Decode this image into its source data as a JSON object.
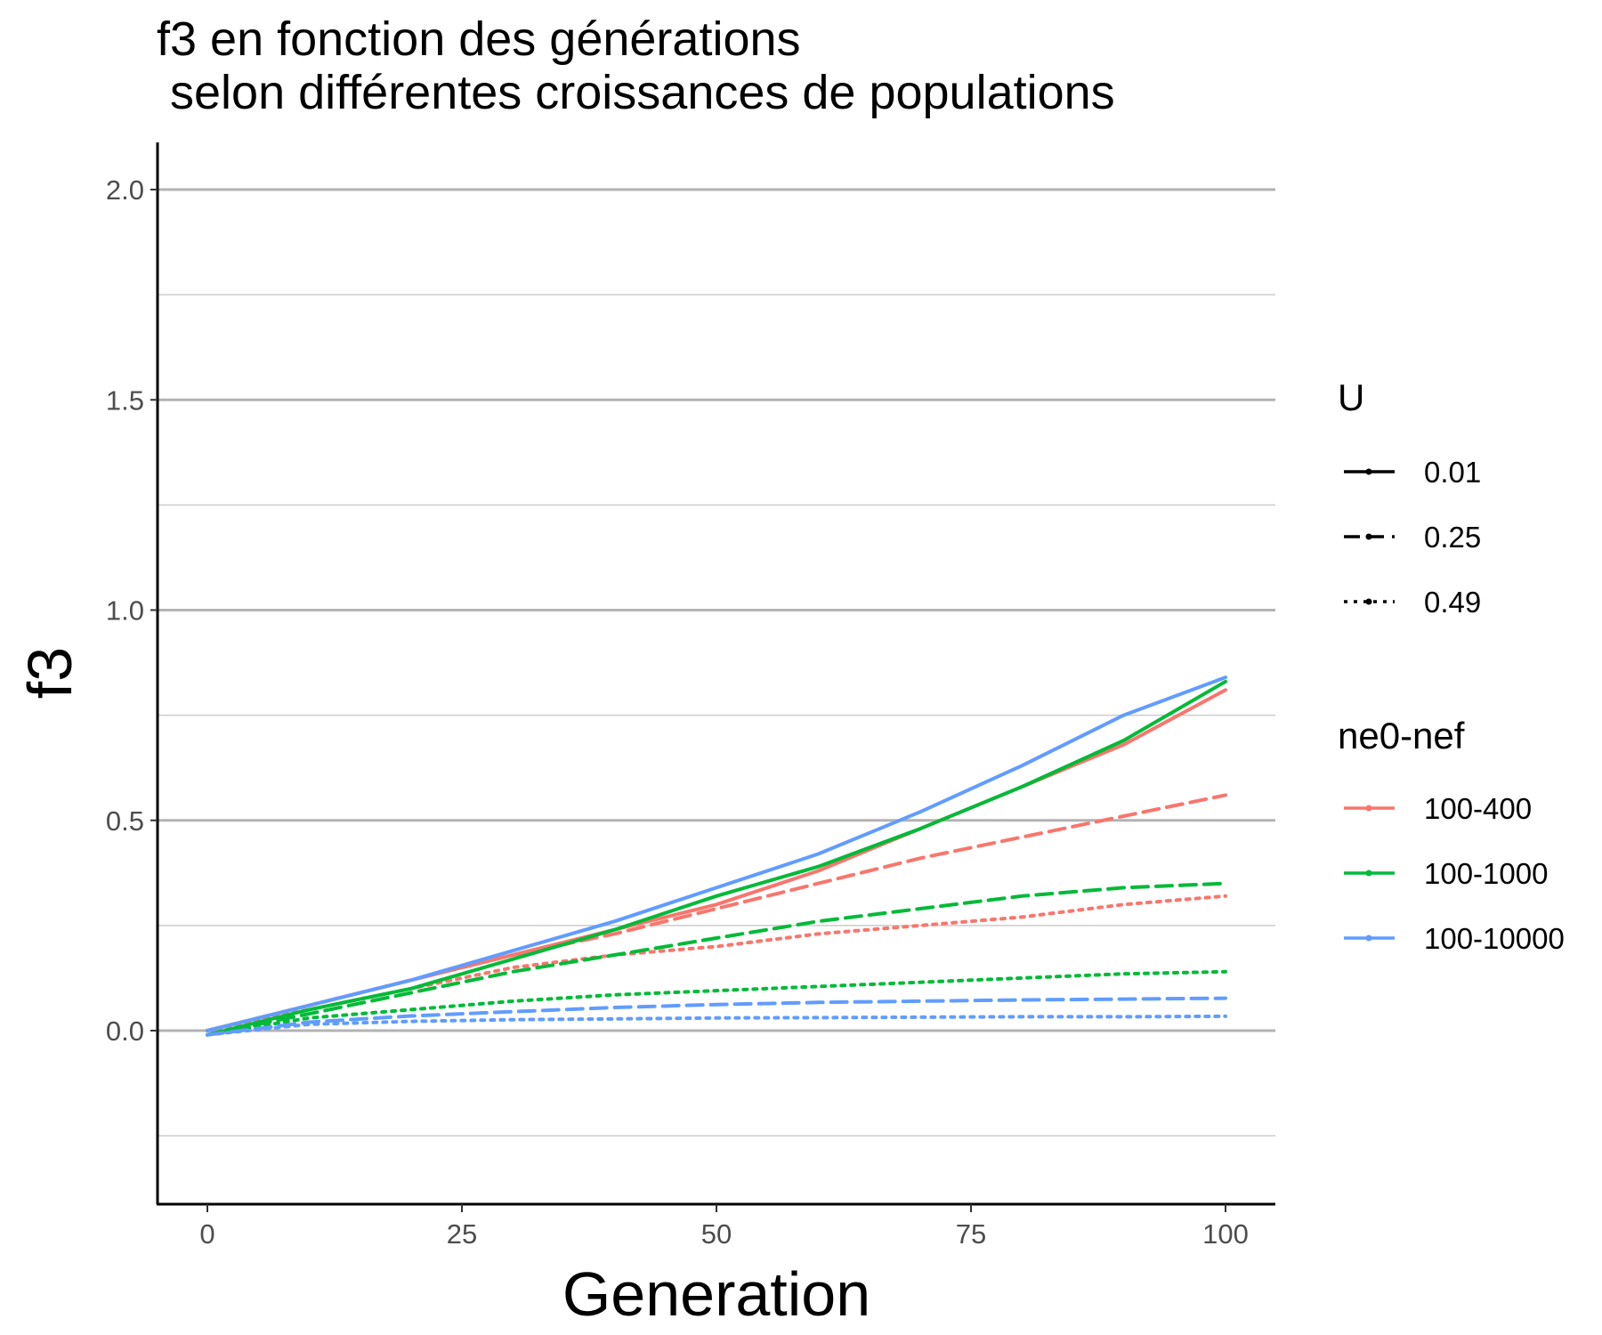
{
  "chart_data": {
    "type": "line",
    "title_lines": [
      "f3 en fonction des générations",
      " selon différentes croissances de populations"
    ],
    "xlabel": "Generation",
    "ylabel": "f3",
    "xlim": [
      -5,
      105
    ],
    "ylim": [
      -0.41,
      2.12
    ],
    "x_ticks": [
      0,
      25,
      50,
      75,
      100
    ],
    "x_tick_labels": [
      "0",
      "25",
      "50",
      "75",
      "100"
    ],
    "y_ticks": [
      0.0,
      0.5,
      1.0,
      1.5,
      2.0
    ],
    "y_tick_labels": [
      "0.0",
      "0.5",
      "1.0",
      "1.5",
      "2.0"
    ],
    "y_minor_ticks": [
      -0.25,
      0.25,
      0.75,
      1.25,
      1.75
    ],
    "grid": "horizontal",
    "legend_position": "right",
    "legends": {
      "U": {
        "title": "U",
        "entries": [
          {
            "label": "0.01",
            "linetype": "solid"
          },
          {
            "label": "0.25",
            "linetype": "dashed"
          },
          {
            "label": "0.49",
            "linetype": "dotted"
          }
        ]
      },
      "group": {
        "title": "ne0-nef",
        "entries": [
          {
            "label": "100-400",
            "color": "#F8766D"
          },
          {
            "label": "100-1000",
            "color": "#00BA38"
          },
          {
            "label": "100-10000",
            "color": "#619CFF"
          }
        ]
      }
    },
    "series": [
      {
        "group": "100-400",
        "U": "0.01",
        "color": "#F8766D",
        "linetype": "solid",
        "x": [
          0,
          10,
          20,
          30,
          40,
          50,
          60,
          70,
          80,
          90,
          100
        ],
        "y": [
          0.0,
          0.06,
          0.12,
          0.18,
          0.24,
          0.3,
          0.38,
          0.48,
          0.58,
          0.68,
          0.81
        ]
      },
      {
        "group": "100-400",
        "U": "0.25",
        "color": "#F8766D",
        "linetype": "dashed",
        "x": [
          0,
          10,
          20,
          30,
          40,
          50,
          60,
          70,
          80,
          90,
          100
        ],
        "y": [
          0.0,
          0.06,
          0.12,
          0.18,
          0.23,
          0.29,
          0.35,
          0.41,
          0.46,
          0.51,
          0.56
        ]
      },
      {
        "group": "100-400",
        "U": "0.49",
        "color": "#F8766D",
        "linetype": "dotted",
        "x": [
          0,
          10,
          20,
          30,
          40,
          50,
          60,
          70,
          80,
          90,
          100
        ],
        "y": [
          0.0,
          0.05,
          0.1,
          0.15,
          0.18,
          0.2,
          0.23,
          0.25,
          0.27,
          0.3,
          0.32
        ]
      },
      {
        "group": "100-1000",
        "U": "0.01",
        "color": "#00BA38",
        "linetype": "solid",
        "x": [
          0,
          10,
          20,
          30,
          40,
          50,
          60,
          70,
          80,
          90,
          100
        ],
        "y": [
          -0.01,
          0.05,
          0.1,
          0.17,
          0.24,
          0.32,
          0.39,
          0.48,
          0.58,
          0.69,
          0.83
        ]
      },
      {
        "group": "100-1000",
        "U": "0.25",
        "color": "#00BA38",
        "linetype": "dashed",
        "x": [
          0,
          10,
          20,
          30,
          40,
          50,
          60,
          70,
          80,
          90,
          100
        ],
        "y": [
          -0.01,
          0.04,
          0.09,
          0.14,
          0.18,
          0.22,
          0.26,
          0.29,
          0.32,
          0.34,
          0.35
        ]
      },
      {
        "group": "100-1000",
        "U": "0.49",
        "color": "#00BA38",
        "linetype": "dotted",
        "x": [
          0,
          10,
          20,
          30,
          40,
          50,
          60,
          70,
          80,
          90,
          100
        ],
        "y": [
          -0.01,
          0.03,
          0.05,
          0.07,
          0.085,
          0.095,
          0.105,
          0.115,
          0.125,
          0.135,
          0.14
        ]
      },
      {
        "group": "100-10000",
        "U": "0.01",
        "color": "#619CFF",
        "linetype": "solid",
        "x": [
          0,
          10,
          20,
          30,
          40,
          50,
          60,
          70,
          80,
          90,
          100
        ],
        "y": [
          0.0,
          0.06,
          0.12,
          0.19,
          0.26,
          0.34,
          0.42,
          0.52,
          0.63,
          0.75,
          0.84
        ]
      },
      {
        "group": "100-10000",
        "U": "0.25",
        "color": "#619CFF",
        "linetype": "dashed",
        "x": [
          0,
          10,
          20,
          30,
          40,
          50,
          60,
          70,
          80,
          90,
          100
        ],
        "y": [
          -0.01,
          0.02,
          0.035,
          0.045,
          0.055,
          0.062,
          0.067,
          0.07,
          0.073,
          0.075,
          0.077
        ]
      },
      {
        "group": "100-10000",
        "U": "0.49",
        "color": "#619CFF",
        "linetype": "dotted",
        "x": [
          0,
          10,
          20,
          30,
          40,
          50,
          60,
          70,
          80,
          90,
          100
        ],
        "y": [
          -0.01,
          0.015,
          0.022,
          0.026,
          0.028,
          0.03,
          0.031,
          0.032,
          0.033,
          0.033,
          0.034
        ]
      }
    ]
  }
}
